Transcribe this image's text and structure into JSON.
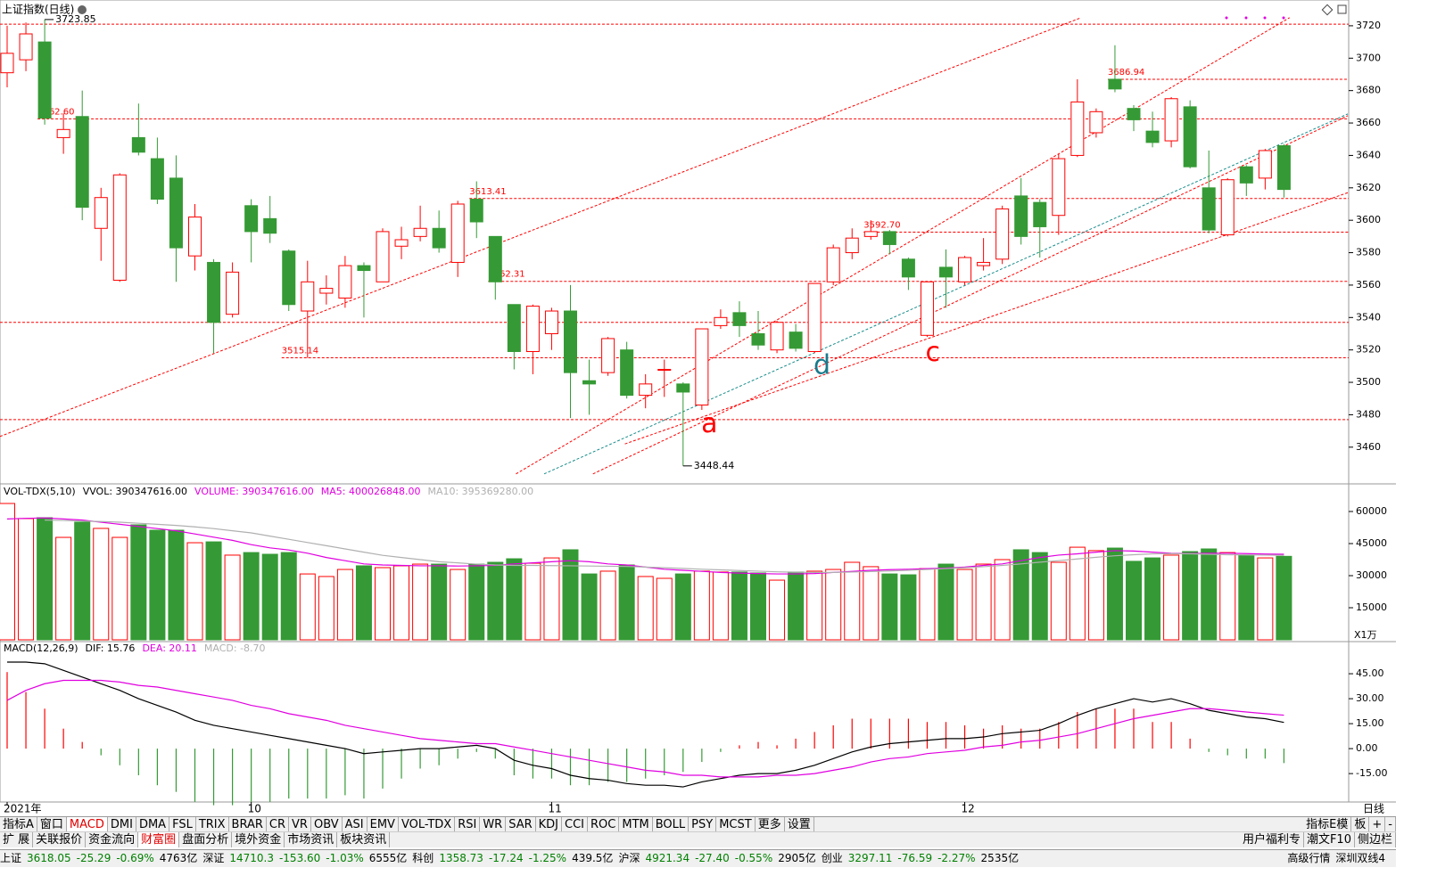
{
  "chart_data": [
    {
      "type": "candlestick",
      "title": "上证指数(日线)",
      "period_label": "日线",
      "categories": [
        "2021年",
        null,
        null,
        null,
        null,
        null,
        null,
        null,
        null,
        null,
        null,
        null,
        null,
        "10",
        null,
        null,
        null,
        null,
        null,
        null,
        null,
        null,
        null,
        null,
        null,
        null,
        null,
        null,
        null,
        "11",
        null,
        null,
        null,
        null,
        null,
        null,
        null,
        null,
        null,
        null,
        null,
        null,
        null,
        null,
        null,
        null,
        null,
        null,
        null,
        null,
        null,
        "12",
        null,
        null,
        null,
        null,
        null,
        null,
        null,
        null,
        null,
        null,
        null,
        null,
        null,
        null,
        null,
        null,
        null
      ],
      "open": [
        3691,
        3699,
        3710,
        3651,
        3664,
        3595,
        3563,
        3651,
        3638,
        3626,
        3578,
        3574,
        3542,
        3609,
        3601,
        3581,
        3544,
        3555,
        3552,
        3572,
        3562,
        3584,
        3590,
        3595,
        3574,
        3613,
        3590,
        3548,
        3519,
        3530,
        3544,
        3501,
        3506,
        3520,
        3492,
        3508,
        3499,
        3486,
        3535,
        3543,
        3530,
        3520,
        3531,
        3519,
        3562,
        3580,
        3590,
        3593,
        3576,
        3529,
        3571,
        3562,
        3572,
        3576,
        3615,
        3611,
        3603,
        3640,
        3654,
        3687,
        3669,
        3655,
        3649,
        3670,
        3620,
        3591,
        3633,
        3626,
        3646
      ],
      "high": [
        3720,
        3722,
        3723.85,
        3666,
        3680,
        3620,
        3629,
        3672,
        3651,
        3640,
        3610,
        3576,
        3574,
        3613,
        3615,
        3582,
        3575,
        3566,
        3578,
        3574,
        3595,
        3596,
        3609,
        3606,
        3612,
        3624,
        3590,
        3548,
        3548,
        3546,
        3560,
        3514,
        3528,
        3525,
        3505,
        3514,
        3500,
        3533,
        3545,
        3550,
        3544,
        3538,
        3536,
        3561,
        3585,
        3595,
        3600,
        3594,
        3577,
        3562,
        3582,
        3578,
        3589,
        3609,
        3626,
        3613,
        3641,
        3687,
        3669,
        3708,
        3671,
        3667,
        3676,
        3674,
        3643,
        3626,
        3634,
        3644,
        3647
      ],
      "low": [
        3682,
        3692,
        3659,
        3641,
        3600,
        3575,
        3562,
        3640,
        3610,
        3562,
        3569,
        3518,
        3540,
        3574,
        3586,
        3544,
        3515.14,
        3548,
        3546,
        3540,
        3562,
        3576,
        3587,
        3580,
        3565,
        3589,
        3551,
        3508,
        3505,
        3520,
        3478,
        3480,
        3504,
        3490,
        3484,
        3491,
        3448.44,
        3483,
        3533,
        3528,
        3520,
        3518,
        3519,
        3518,
        3560,
        3576,
        3588,
        3579,
        3557,
        3528,
        3546,
        3560,
        3569,
        3573,
        3585,
        3577,
        3591,
        3639,
        3651,
        3679,
        3655,
        3645,
        3645,
        3632,
        3592,
        3590,
        3615,
        3619,
        3614
      ],
      "close": [
        3703,
        3715,
        3663,
        3656,
        3608,
        3614,
        3628,
        3642,
        3613,
        3583,
        3602,
        3537,
        3568,
        3593,
        3592,
        3548,
        3562,
        3558,
        3572,
        3569,
        3593,
        3588,
        3595,
        3583,
        3610,
        3599,
        3562,
        3519,
        3547,
        3544,
        3506,
        3499,
        3527,
        3492,
        3499,
        3508,
        3494,
        3533,
        3540,
        3535,
        3523,
        3537,
        3521,
        3561,
        3583,
        3589,
        3593,
        3585,
        3565,
        3562,
        3565,
        3577,
        3574,
        3607,
        3590,
        3596,
        3638,
        3673,
        3667,
        3681,
        3662,
        3648,
        3675,
        3633,
        3594,
        3625,
        3623,
        3643,
        3619
      ],
      "up_color": "#ff0000",
      "down_color": "#359a35",
      "ylim": [
        3439,
        3731.5
      ],
      "yticks": [
        3460,
        3480,
        3500,
        3520,
        3540,
        3560,
        3580,
        3600,
        3620,
        3640,
        3660,
        3680,
        3700,
        3720
      ],
      "levels": [
        {
          "value": 3686.94,
          "label": "3686.94",
          "index": 59
        },
        {
          "value": 3662.6,
          "label": "3662.60",
          "index": 2
        },
        {
          "value": 3613.41,
          "label": "3613.41",
          "index": 25
        },
        {
          "value": 3592.7,
          "label": "3592.70",
          "index": 46
        },
        {
          "value": 3562.31,
          "label": "3562.31",
          "index": 26
        },
        {
          "value": 3515.14,
          "label": "3515.14",
          "index": 15
        }
      ],
      "hlines": [
        3721,
        3537,
        3477
      ],
      "extremes": [
        {
          "index": 2,
          "value": 3723.85
        },
        {
          "index": 36,
          "value": 3448.44
        }
      ],
      "trend_lines": [
        {
          "x": [
            -0.38,
            57.2
          ],
          "y": [
            3466.6,
            3725
          ],
          "color": "#ff0000"
        },
        {
          "x": [
            27.1,
            68.3
          ],
          "y": [
            3443.5,
            3725
          ],
          "color": "#ff0000"
        },
        {
          "x": [
            31.2,
            71.4
          ],
          "y": [
            3443.5,
            3664.5
          ],
          "color": "#ff0000"
        },
        {
          "x": [
            28.6,
            71.4
          ],
          "y": [
            3443.5,
            3665.6
          ],
          "color": "#1a8c8c"
        },
        {
          "x": [
            32.9,
            71.4
          ],
          "y": [
            3462,
            3617
          ],
          "color": "#ff0000"
        }
      ],
      "annotations": [
        {
          "text": "a",
          "index": 37.4,
          "value": 3474,
          "color": "#ff0000"
        },
        {
          "text": "d",
          "index": 43.4,
          "value": 3510,
          "color": "#1a7a8c"
        },
        {
          "text": "c",
          "index": 49.3,
          "value": 3518,
          "color": "#ff0000"
        }
      ]
    },
    {
      "type": "volume",
      "header": [
        {
          "text": "VOL-TDX(5,10)",
          "color": "#000"
        },
        {
          "text": "VVOL: 390347616.00",
          "color": "#000"
        },
        {
          "text": "VOLUME: 390347616.00",
          "color": "#e000e0"
        },
        {
          "text": "MA5: 400026848.00",
          "color": "#e000e0"
        },
        {
          "text": "MA10: 395369280.00",
          "color": "#b0b0b0"
        }
      ],
      "unit_label": "X1万",
      "values": [
        63750,
        56700,
        57100,
        47900,
        55000,
        52100,
        47900,
        53750,
        51250,
        51250,
        45400,
        45800,
        39600,
        40800,
        40000,
        40800,
        30800,
        29600,
        32900,
        34600,
        33750,
        34600,
        35400,
        35400,
        32900,
        35400,
        36250,
        37900,
        35800,
        38300,
        42100,
        30800,
        32100,
        35000,
        29600,
        28750,
        30800,
        32100,
        31700,
        31700,
        31250,
        27900,
        31700,
        32100,
        32900,
        36250,
        34200,
        30800,
        30400,
        33300,
        35400,
        32900,
        35400,
        37500,
        42100,
        40800,
        36250,
        43300,
        41700,
        42900,
        36700,
        38300,
        39600,
        41250,
        42500,
        40800,
        39600,
        38300,
        39034.76
      ],
      "ma5": [
        56500,
        56800,
        57000,
        56500,
        56000,
        55000,
        54000,
        53000,
        52000,
        51000,
        49500,
        48000,
        46500,
        44500,
        43000,
        42000,
        40500,
        38500,
        37000,
        35500,
        35000,
        34800,
        34600,
        34600,
        34500,
        34600,
        34800,
        35500,
        36000,
        36500,
        37000,
        36500,
        35500,
        35000,
        34000,
        33000,
        32500,
        32000,
        31500,
        31200,
        31000,
        30800,
        30800,
        31000,
        31500,
        32000,
        32500,
        32800,
        33000,
        33300,
        33500,
        34000,
        34800,
        35500,
        37000,
        38500,
        39600,
        40200,
        41000,
        41700,
        41500,
        41000,
        40500,
        40300,
        40500,
        40500,
        40300,
        40100,
        40002.68
      ],
      "ma5_color": "#e000e0",
      "ma10": [
        null,
        null,
        56000,
        55800,
        55500,
        55300,
        55000,
        54500,
        54000,
        53500,
        52800,
        52000,
        51000,
        50000,
        48500,
        47000,
        45500,
        44000,
        42500,
        41000,
        39500,
        38500,
        37500,
        36500,
        36000,
        35400,
        35000,
        34800,
        34800,
        34700,
        34600,
        34500,
        34400,
        34300,
        34000,
        33700,
        33400,
        33000,
        32700,
        32400,
        32100,
        31800,
        31600,
        31500,
        31500,
        31700,
        31900,
        32200,
        32500,
        32900,
        33300,
        33700,
        34200,
        34800,
        35500,
        36300,
        37000,
        37800,
        38600,
        39300,
        39800,
        40200,
        40300,
        40200,
        40000,
        39800,
        39700,
        39600,
        39536.93
      ],
      "ma10_color": "#b0b0b0",
      "ylim": [
        0,
        65000
      ],
      "yticks": [
        15000,
        30000,
        45000,
        60000
      ]
    },
    {
      "type": "macd",
      "header": [
        {
          "text": "MACD(12,26,9)",
          "color": "#000"
        },
        {
          "text": "DIF: 15.76",
          "color": "#000"
        },
        {
          "text": "DEA: 20.11",
          "color": "#e000e0"
        },
        {
          "text": "MACD: -8.70",
          "color": "#b0b0b0"
        }
      ],
      "dif": [
        52,
        52,
        51,
        47,
        43,
        39,
        35,
        30,
        26,
        22,
        17,
        14,
        12,
        10,
        8,
        6,
        4,
        2,
        0,
        -3,
        -2,
        -1,
        0,
        0,
        1,
        2,
        0,
        -7,
        -10,
        -12,
        -16,
        -18,
        -19,
        -21,
        -22,
        -22,
        -23,
        -20,
        -18,
        -16,
        -15,
        -15,
        -13,
        -10,
        -6,
        -2,
        1,
        3,
        4,
        5,
        6,
        6,
        7,
        9,
        10,
        11,
        15,
        20,
        24,
        27,
        30,
        28,
        30,
        27,
        23,
        21,
        19,
        18,
        15.76
      ],
      "dif_color": "#000000",
      "dea": [
        29,
        35,
        39,
        41,
        41,
        41,
        40,
        38,
        37,
        35,
        33,
        31,
        29,
        26,
        24,
        21,
        19,
        17,
        14,
        12,
        10,
        8,
        6,
        5,
        4,
        3,
        3,
        1,
        -1,
        -3,
        -5,
        -7,
        -9,
        -11,
        -13,
        -14,
        -16,
        -16,
        -17,
        -17,
        -17,
        -16,
        -16,
        -15,
        -13,
        -11,
        -8,
        -6,
        -5,
        -3,
        -2,
        -1,
        1,
        2,
        4,
        5,
        7,
        9,
        12,
        15,
        18,
        20,
        22,
        24,
        24,
        23,
        22,
        21,
        20.11
      ],
      "dea_color": "#e000e0",
      "macd": [
        46,
        34,
        24,
        12,
        4,
        -4,
        -10,
        -16,
        -22,
        -26,
        -32,
        -34,
        -34,
        -32,
        -32,
        -30,
        -30,
        -30,
        -28,
        -30,
        -24,
        -18,
        -12,
        -10,
        -6,
        -2,
        -6,
        -16,
        -18,
        -18,
        -22,
        -22,
        -20,
        -20,
        -18,
        -16,
        -14,
        -8,
        -2,
        2,
        4,
        2,
        6,
        10,
        14,
        18,
        18,
        18,
        18,
        16,
        16,
        14,
        12,
        14,
        12,
        12,
        16,
        22,
        24,
        24,
        24,
        16,
        16,
        6,
        -2,
        -4,
        -6,
        -6,
        -8.7
      ],
      "ylim": [
        -31,
        53.6
      ],
      "yticks": [
        {
          "value": 45,
          "label": "45.00"
        },
        {
          "value": 30,
          "label": "30.00"
        },
        {
          "value": 15,
          "label": "15.00"
        },
        {
          "value": 0,
          "label": "0.00"
        },
        {
          "value": -15,
          "label": "-15.00"
        }
      ]
    }
  ],
  "toolbar": {
    "tabs": [
      "指标A",
      "窗口",
      "MACD",
      "DMI",
      "DMA",
      "FSL",
      "TRIX",
      "BRAR",
      "CR",
      "VR",
      "OBV",
      "ASI",
      "EMV",
      "VOL-TDX",
      "RSI",
      "WR",
      "SAR",
      "KDJ",
      "CCI",
      "ROC",
      "MTM",
      "BOLL",
      "PSY",
      "MCST",
      "更多",
      "设置"
    ],
    "active": "MACD",
    "tabs_right": [
      "指标E模",
      "板",
      "+",
      "-"
    ],
    "tabs2": [
      "扩 展",
      "关联报价",
      "资金流向",
      "财富圈",
      "盘面分析",
      "境外资金",
      "市场资讯",
      "板块资讯"
    ],
    "active2": "财富圈",
    "tabs2_right": [
      "用户福利专",
      "潮文F10",
      "侧边栏"
    ]
  },
  "status": [
    {
      "name": "上证",
      "values": [
        "3618.05",
        "-25.29",
        "-0.69%"
      ],
      "amount": "4763亿"
    },
    {
      "name": "深证",
      "values": [
        "14710.3",
        "-153.60",
        "-1.03%"
      ],
      "amount": "6555亿"
    },
    {
      "name": "科创",
      "values": [
        "1358.73",
        "-17.24",
        "-1.25%"
      ],
      "amount": "439.5亿"
    },
    {
      "name": "沪深",
      "values": [
        "4921.34",
        "-27.40",
        "-0.55%"
      ],
      "amount": "2905亿"
    },
    {
      "name": "创业",
      "values": [
        "3297.11",
        "-76.59",
        "-2.27%"
      ],
      "amount": "2535亿"
    }
  ],
  "status_right": [
    "高级行情",
    "深圳双线4"
  ]
}
